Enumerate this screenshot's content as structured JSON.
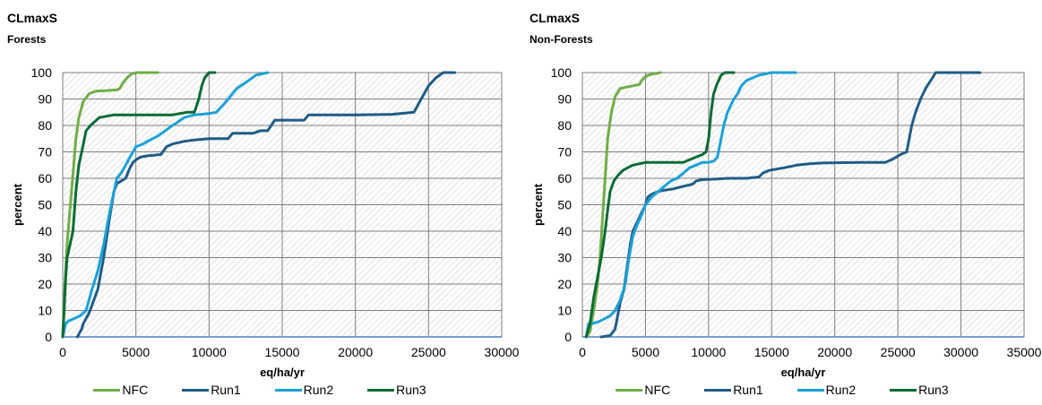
{
  "chart_data": [
    {
      "type": "line",
      "title": "CLmaxS",
      "subtitle": "Forests",
      "xlabel": "eq/ha/yr",
      "ylabel": "percent",
      "xlim": [
        0,
        30000
      ],
      "ylim": [
        0,
        100
      ],
      "xticks": [
        "0",
        "5000",
        "10000",
        "15000",
        "20000",
        "25000",
        "30000"
      ],
      "yticks": [
        "0",
        "10",
        "20",
        "30",
        "40",
        "50",
        "60",
        "70",
        "80",
        "90",
        "100"
      ],
      "grid": true,
      "legend_position": "bottom",
      "series": [
        {
          "name": "NFC",
          "color": "#70ad47",
          "x": [
            0,
            150,
            300,
            450,
            600,
            750,
            900,
            1100,
            1400,
            1800,
            2300,
            3000,
            3700,
            3900,
            4100,
            4400,
            4700,
            5000,
            6500
          ],
          "y": [
            0,
            20,
            35,
            45,
            55,
            65,
            75,
            83,
            89,
            92,
            93,
            93.2,
            93.5,
            94,
            96,
            98,
            99.5,
            100,
            100
          ]
        },
        {
          "name": "Run1",
          "color": "#1f5c87",
          "x": [
            1000,
            1100,
            1300,
            1400,
            1600,
            1800,
            2000,
            2400,
            2800,
            3200,
            3500,
            3700,
            4000,
            4300,
            4600,
            4800,
            5000,
            5300,
            5800,
            6700,
            7100,
            7500,
            8300,
            9000,
            10000,
            11300,
            11600,
            13000,
            13500,
            14000,
            14500,
            16500,
            16800,
            20000,
            22500,
            24000,
            24200,
            24400,
            24700,
            25000,
            25500,
            26000,
            26800
          ],
          "y": [
            0,
            1,
            3,
            5,
            7,
            9,
            12,
            18,
            30,
            45,
            55,
            58,
            59,
            60,
            64,
            66,
            67,
            68,
            68.5,
            69,
            72,
            73,
            74,
            74.5,
            75,
            75,
            77,
            77,
            78,
            78,
            82,
            82,
            84,
            84,
            84.2,
            85,
            87,
            89,
            92,
            95,
            98,
            100,
            100
          ]
        },
        {
          "name": "Run2",
          "color": "#1ba1d7",
          "x": [
            0,
            200,
            400,
            800,
            1200,
            1600,
            1800,
            2000,
            2400,
            2800,
            3200,
            3500,
            3700,
            4000,
            4300,
            4600,
            5000,
            5500,
            5800,
            6500,
            7000,
            7500,
            7800,
            8300,
            9000,
            10000,
            10500,
            11000,
            11300,
            11600,
            11900,
            12300,
            12700,
            13200,
            14000
          ],
          "y": [
            0,
            5,
            6,
            7,
            8,
            10,
            14,
            18,
            25,
            35,
            47,
            55,
            60,
            62,
            65,
            68,
            72,
            73,
            74,
            76,
            78,
            80,
            81,
            83,
            84,
            84.5,
            85,
            88,
            90,
            92,
            94,
            95.5,
            97,
            99,
            100
          ]
        },
        {
          "name": "Run3",
          "color": "#0a6b34",
          "x": [
            0,
            100,
            200,
            300,
            500,
            700,
            900,
            1100,
            1300,
            1600,
            1900,
            2500,
            3500,
            6000,
            7500,
            8500,
            9000,
            9300,
            9500,
            9700,
            10000,
            10400
          ],
          "y": [
            0,
            10,
            22,
            30,
            35,
            40,
            55,
            65,
            70,
            78,
            80,
            83,
            84,
            84,
            84,
            85,
            85,
            90,
            95,
            98,
            100,
            100
          ]
        }
      ]
    },
    {
      "type": "line",
      "title": "CLmaxS",
      "subtitle": "Non-Forests",
      "xlabel": "eq/ha/yr",
      "ylabel": "percent",
      "xlim": [
        0,
        35000
      ],
      "ylim": [
        0,
        100
      ],
      "xticks": [
        "0",
        "5000",
        "10000",
        "15000",
        "20000",
        "25000",
        "30000",
        "35000"
      ],
      "yticks": [
        "0",
        "10",
        "20",
        "30",
        "40",
        "50",
        "60",
        "70",
        "80",
        "90",
        "100"
      ],
      "grid": true,
      "legend_position": "bottom",
      "series": [
        {
          "name": "NFC",
          "color": "#70ad47",
          "x": [
            300,
            600,
            900,
            1200,
            1400,
            1600,
            1800,
            2000,
            2300,
            2600,
            3000,
            3500,
            4000,
            4500,
            4700,
            4900,
            5200,
            5600,
            6200
          ],
          "y": [
            0,
            2,
            10,
            20,
            30,
            45,
            60,
            75,
            85,
            91,
            94,
            94.5,
            95,
            95.5,
            97,
            98,
            99,
            99.5,
            100
          ]
        },
        {
          "name": "Run1",
          "color": "#1f5c87",
          "x": [
            1500,
            2200,
            2600,
            2800,
            3000,
            3300,
            3500,
            3800,
            4000,
            4300,
            4600,
            5000,
            5200,
            5500,
            6000,
            6500,
            7200,
            8000,
            8500,
            8800,
            9000,
            9500,
            10000,
            10500,
            11500,
            13000,
            14000,
            14300,
            14800,
            16000,
            17000,
            18000,
            19000,
            22000,
            24000,
            24500,
            25200,
            25700,
            25900,
            26100,
            26400,
            26800,
            27200,
            27600,
            28000,
            31500
          ],
          "y": [
            0,
            0.5,
            3,
            8,
            13,
            18,
            25,
            35,
            40,
            43,
            46,
            50,
            53,
            54,
            55,
            55.5,
            56,
            57,
            57.5,
            58,
            59,
            59.5,
            59.6,
            59.7,
            60,
            60,
            60.5,
            62,
            63,
            64,
            65,
            65.5,
            65.8,
            66,
            66,
            67,
            69,
            70,
            75,
            80,
            85,
            90,
            94,
            97,
            100,
            100
          ]
        },
        {
          "name": "Run2",
          "color": "#1ba1d7",
          "x": [
            300,
            500,
            800,
            1100,
            1400,
            1800,
            2200,
            2600,
            3000,
            3400,
            3700,
            4000,
            4300,
            4600,
            5000,
            5500,
            6000,
            6500,
            7000,
            7500,
            8000,
            8500,
            9000,
            9500,
            10000,
            10400,
            10700,
            11000,
            11200,
            11500,
            11700,
            12000,
            12300,
            12600,
            13000,
            13500,
            14000,
            14500,
            15000,
            15300,
            16900
          ],
          "y": [
            0,
            5,
            5,
            5.5,
            6,
            7,
            8,
            10,
            14,
            20,
            30,
            38,
            42,
            45,
            50,
            53,
            55,
            57,
            59,
            60,
            62,
            64,
            65,
            66,
            66,
            66.5,
            68,
            75,
            80,
            85,
            87,
            90,
            92,
            95,
            97,
            98,
            99,
            99.5,
            100,
            100,
            100
          ]
        },
        {
          "name": "Run3",
          "color": "#0a6b34",
          "x": [
            300,
            600,
            900,
            1100,
            1300,
            1500,
            1800,
            2000,
            2200,
            2500,
            2800,
            3200,
            3600,
            4000,
            5000,
            8000,
            8500,
            9000,
            9500,
            9800,
            10000,
            10200,
            10400,
            10700,
            11000,
            11300,
            12000
          ],
          "y": [
            0,
            5,
            15,
            20,
            25,
            30,
            40,
            48,
            55,
            59,
            61,
            63,
            64,
            65,
            66,
            66,
            67,
            68,
            69,
            70,
            75,
            85,
            92,
            96,
            99,
            100,
            100
          ]
        }
      ]
    }
  ]
}
